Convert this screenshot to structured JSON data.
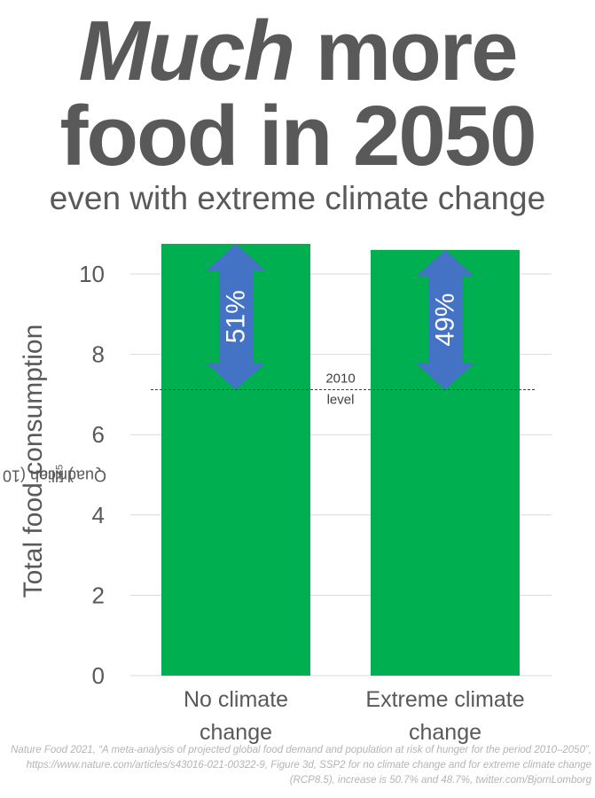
{
  "headline": {
    "emphasis": "Much",
    "line1_rest": " more",
    "line2": "food in 2050"
  },
  "subtitle": "even with extreme climate change",
  "y_axis": {
    "label": "Total food consumption",
    "sublabel_prefix": "Quadrillion (10",
    "sublabel_exponent": "15",
    "sublabel_suffix": ") kcal"
  },
  "chart_data": {
    "type": "bar",
    "title": "Much more food in 2050",
    "subtitle": "even with extreme climate change",
    "categories": [
      "No climate change",
      "Extreme climate change"
    ],
    "category_lines": [
      [
        "No climate",
        "change"
      ],
      [
        "Extreme climate",
        "change"
      ]
    ],
    "values": [
      10.75,
      10.6
    ],
    "ylabel": "Total food consumption, Quadrillion (10^15) kcal",
    "ylim": [
      0,
      10.75
    ],
    "yticks": [
      0,
      2,
      4,
      6,
      8,
      10
    ],
    "grid": true,
    "bar_color": "#00b050",
    "reference_line": {
      "value": 7.12,
      "label_lines": [
        "2010",
        "level"
      ]
    },
    "increase_arrows": [
      {
        "category": "No climate change",
        "label": "51%",
        "from": 7.12,
        "to": 10.75
      },
      {
        "category": "Extreme climate change",
        "label": "49%",
        "from": 7.12,
        "to": 10.6
      }
    ],
    "arrow_color": "#4472c4"
  },
  "source": "Nature Food 2021, “A meta-analysis of projected global food demand and population at risk of hunger for the period 2010–2050”, https://www.nature.com/articles/s43016-021-00322-9, Figure 3d, SSP2 for no climate change and for extreme climate change (RCP8.5), increase is 50.7% and 48.7%, twitter.com/BjornLomborg"
}
